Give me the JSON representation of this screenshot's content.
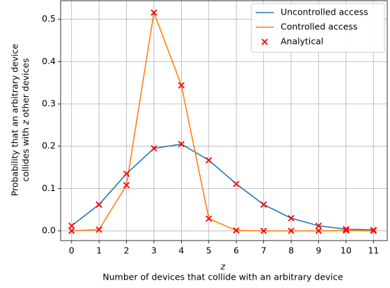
{
  "chart_data": {
    "type": "line",
    "xlabel_var": "z",
    "xlabel": "Number of devices that collide with an arbitrary device",
    "ylabel_lines": [
      "Probability that an arbitrary device",
      "collides with ",
      "z",
      " other devices"
    ],
    "x": [
      0,
      1,
      2,
      3,
      4,
      5,
      6,
      7,
      8,
      9,
      10,
      11
    ],
    "series": [
      {
        "name": "Uncontrolled access",
        "color": "#1f77b4",
        "values": [
          0.012,
          0.062,
          0.135,
          0.195,
          0.205,
          0.167,
          0.111,
          0.062,
          0.03,
          0.012,
          0.004,
          0.002
        ]
      },
      {
        "name": "Controlled access",
        "color": "#ff7f0e",
        "values": [
          0.0,
          0.003,
          0.108,
          0.516,
          0.344,
          0.029,
          0.001,
          0.0,
          0.0,
          0.0,
          0.001,
          0.0
        ]
      },
      {
        "name": "Analytical",
        "color": "#ff0000",
        "marker": "x",
        "x": [
          0,
          1,
          2,
          3,
          4,
          5,
          6,
          7,
          8,
          9,
          10,
          11,
          0,
          1,
          2,
          3,
          4,
          5,
          6,
          7,
          8,
          9,
          10,
          11
        ],
        "values": [
          0.012,
          0.062,
          0.135,
          0.195,
          0.205,
          0.167,
          0.111,
          0.062,
          0.03,
          0.012,
          0.004,
          0.002,
          0.0,
          0.003,
          0.108,
          0.516,
          0.344,
          0.029,
          0.001,
          0.0,
          0.0,
          0.0,
          0.001,
          0.0
        ]
      }
    ],
    "xlim": [
      -0.4,
      11.5
    ],
    "ylim": [
      -0.023,
      0.544
    ],
    "xticks": [
      0,
      1,
      2,
      3,
      4,
      5,
      6,
      7,
      8,
      9,
      10,
      11
    ],
    "yticks": [
      {
        "value": 0,
        "label": "0.0"
      },
      0.1,
      0.2,
      0.3,
      0.4,
      0.5
    ],
    "grid": true,
    "legend": "upper right"
  }
}
